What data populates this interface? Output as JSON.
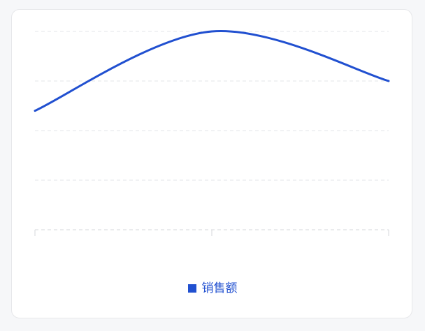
{
  "chart_data": {
    "type": "line",
    "categories": [
      "",
      "",
      ""
    ],
    "series": [
      {
        "name": "销售额",
        "values": [
          2.4,
          4.0,
          3.0
        ]
      }
    ],
    "ylim": [
      0,
      4
    ],
    "grid": true,
    "legend": "bottom",
    "smooth": true,
    "colors": {
      "series": "#2150d0",
      "grid": "#e3e4e8",
      "axis": "#d6d7db"
    }
  }
}
